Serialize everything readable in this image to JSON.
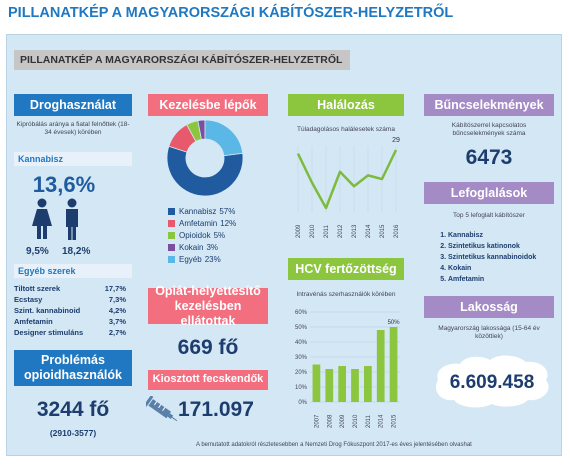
{
  "title": "PILLANATKÉP A MAGYARORSZÁGI KÁBÍTÓSZER-HELYZETRŐL",
  "banner": "PILLANATKÉP A MAGYARORSZÁGI KÁBÍTÓSZER-HELYZETRŐL",
  "drug_use": {
    "header": "Droghasználat",
    "subtitle": "Kipróbálás aránya a fiatal felnőttek (18-34 évesek) körében",
    "cannabis_label": "Kannabisz",
    "cannabis_total": "13,6%",
    "cannabis_female": "9,5%",
    "cannabis_male": "18,2%",
    "other_label": "Egyéb szerek",
    "other": [
      [
        "Tiltott szerek",
        "17,7%"
      ],
      [
        "Ecstasy",
        "7,3%"
      ],
      [
        "Szint. kannabinoid",
        "4,2%"
      ],
      [
        "Amfetamin",
        "3,7%"
      ],
      [
        "Designer stimuláns",
        "2,7%"
      ]
    ]
  },
  "opioid": {
    "header": "Problémás opioidhasználók",
    "count": "3244 fő",
    "range": "(2910-3577)"
  },
  "treatment": {
    "header": "Kezelésbe lépők"
  },
  "substitution": {
    "header": "Opiát-helyettesítő kezelésben ellátottak",
    "count": "669 fő"
  },
  "syringes": {
    "header": "Kiosztott fecskendők",
    "count": "171.097"
  },
  "deaths": {
    "header": "Halálozás"
  },
  "hcv": {
    "header": "HCV fertőzöttség"
  },
  "crimes": {
    "header": "Bűncselekmények",
    "subtitle": "Kábítószerrel kapcsolatos bűncselekmények száma",
    "count": "6473"
  },
  "seizures": {
    "header": "Lefoglalások",
    "subtitle": "Top 5 lefoglalt kábítószer",
    "items": [
      "Kannabisz",
      "Szintetikus katinonok",
      "Szintetikus kannabinoidok",
      "Kokain",
      "Amfetamin"
    ]
  },
  "population": {
    "header": "Lakosság",
    "subtitle": "Magyarország lakossága (15-64 év közöttiek)",
    "count": "6.609.458"
  },
  "footer": "A bemutatott adatokról részletesebben a Nemzeti Drog Fókuszpont 2017-es éves jelentésében olvashat",
  "chart_data": [
    {
      "type": "donut",
      "categories": [
        "Kannabisz",
        "Amfetamin",
        "Opioidok",
        "Kokain",
        "Egyéb"
      ],
      "values": [
        57,
        12,
        5,
        3,
        23
      ],
      "value_labels": [
        "57%",
        "12%",
        "5%",
        "3%",
        "23%"
      ],
      "colors": [
        "#1f5b9e",
        "#e8596b",
        "#8cc63f",
        "#7b4fa0",
        "#5bb8e6"
      ]
    },
    {
      "type": "line",
      "title": "Túladagolásos halálesetek száma",
      "categories": [
        "2009",
        "2010",
        "2011",
        "2012",
        "2013",
        "2014",
        "2015",
        "2016"
      ],
      "values": [
        28,
        20,
        13,
        23,
        19,
        22,
        21,
        29
      ],
      "color": "#7dbb3c"
    },
    {
      "type": "bar",
      "title": "Intravénás szerhasználók körében",
      "categories": [
        "2007",
        "2008",
        "2009",
        "2010",
        "2011",
        "2014",
        "2015"
      ],
      "values": [
        25,
        22,
        24,
        22,
        24,
        48,
        50
      ],
      "value_labels": [
        null,
        null,
        null,
        null,
        null,
        null,
        "50%"
      ],
      "color": "#8cc63f",
      "ylim": [
        0,
        60
      ],
      "grid": true,
      "yticks": [
        {
          "value": 0,
          "label": "0%"
        },
        {
          "value": 10,
          "label": "10%"
        },
        {
          "value": 20,
          "label": "20%"
        },
        {
          "value": 30,
          "label": "30%"
        },
        {
          "value": 40,
          "label": "40%"
        },
        {
          "value": 50,
          "label": "50%"
        },
        {
          "value": 60,
          "label": "60%"
        }
      ]
    }
  ]
}
